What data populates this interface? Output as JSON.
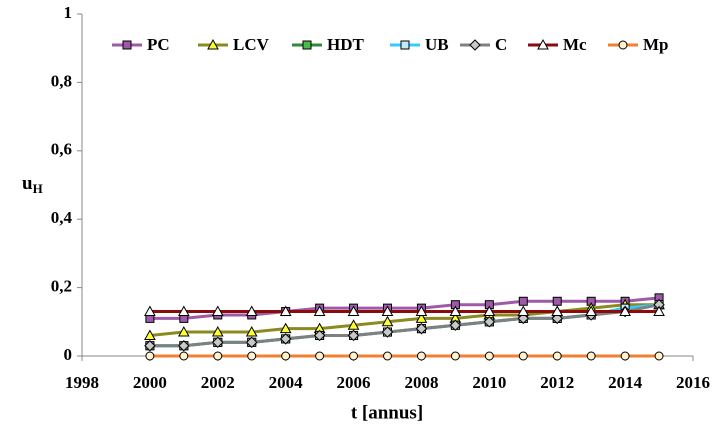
{
  "chart_data": {
    "type": "line",
    "x_label": "t [annus]",
    "y_label": "u",
    "y_label_subscript": "H",
    "x": [
      2000,
      2001,
      2002,
      2003,
      2004,
      2005,
      2006,
      2007,
      2008,
      2009,
      2010,
      2011,
      2012,
      2013,
      2014,
      2015
    ],
    "xlim": [
      1998,
      2016
    ],
    "xticks": [
      1998,
      2000,
      2002,
      2004,
      2006,
      2008,
      2010,
      2012,
      2014,
      2016
    ],
    "ylim": [
      0,
      1
    ],
    "yticks": [
      0,
      {
        "value": 0.2,
        "label": "0,2"
      },
      {
        "value": 0.4,
        "label": "0,4"
      },
      {
        "value": 0.6,
        "label": "0,6"
      },
      {
        "value": 0.8,
        "label": "0,8"
      },
      1
    ],
    "grid": false,
    "legend": "top",
    "series": [
      {
        "name": "PC",
        "color": "#9e5aa8",
        "marker": "square",
        "marker_fill": "#9e5aa8",
        "values": [
          0.11,
          0.11,
          0.12,
          0.12,
          0.13,
          0.14,
          0.14,
          0.14,
          0.14,
          0.15,
          0.15,
          0.16,
          0.16,
          0.16,
          0.16,
          0.17
        ]
      },
      {
        "name": "LCV",
        "color": "#8a8a1e",
        "marker": "triangle",
        "marker_fill": "#ffff33",
        "values": [
          0.06,
          0.07,
          0.07,
          0.07,
          0.08,
          0.08,
          0.09,
          0.1,
          0.11,
          0.11,
          0.12,
          0.12,
          0.13,
          0.14,
          0.15,
          0.15
        ]
      },
      {
        "name": "HDT",
        "color": "#2e8b3a",
        "marker": "square",
        "marker_fill": "#4cbb4c",
        "values": [
          0.03,
          0.03,
          0.04,
          0.04,
          0.05,
          0.06,
          0.06,
          0.07,
          0.08,
          0.09,
          0.1,
          0.11,
          0.11,
          0.12,
          0.14,
          0.15
        ]
      },
      {
        "name": "UB",
        "color": "#33ccff",
        "marker": "square",
        "marker_fill": "#bfefff",
        "values": [
          0.03,
          0.03,
          0.04,
          0.04,
          0.05,
          0.06,
          0.06,
          0.07,
          0.08,
          0.09,
          0.1,
          0.11,
          0.11,
          0.12,
          0.14,
          0.15
        ]
      },
      {
        "name": "C",
        "color": "#808080",
        "marker": "diamond",
        "marker_fill": "#c8c8c8",
        "values": [
          0.03,
          0.03,
          0.04,
          0.04,
          0.05,
          0.06,
          0.06,
          0.07,
          0.08,
          0.09,
          0.1,
          0.11,
          0.11,
          0.12,
          0.13,
          0.15
        ]
      },
      {
        "name": "Mc",
        "color": "#8b0a0a",
        "marker": "triangle",
        "marker_fill": "#ffffff",
        "values": [
          0.13,
          0.13,
          0.13,
          0.13,
          0.13,
          0.13,
          0.13,
          0.13,
          0.13,
          0.13,
          0.13,
          0.13,
          0.13,
          0.13,
          0.13,
          0.13
        ]
      },
      {
        "name": "Mp",
        "color": "#f28030",
        "marker": "circle",
        "marker_fill": "#fff2cc",
        "values": [
          0,
          0,
          0,
          0,
          0,
          0,
          0,
          0,
          0,
          0,
          0,
          0,
          0,
          0,
          0,
          0
        ]
      }
    ]
  }
}
